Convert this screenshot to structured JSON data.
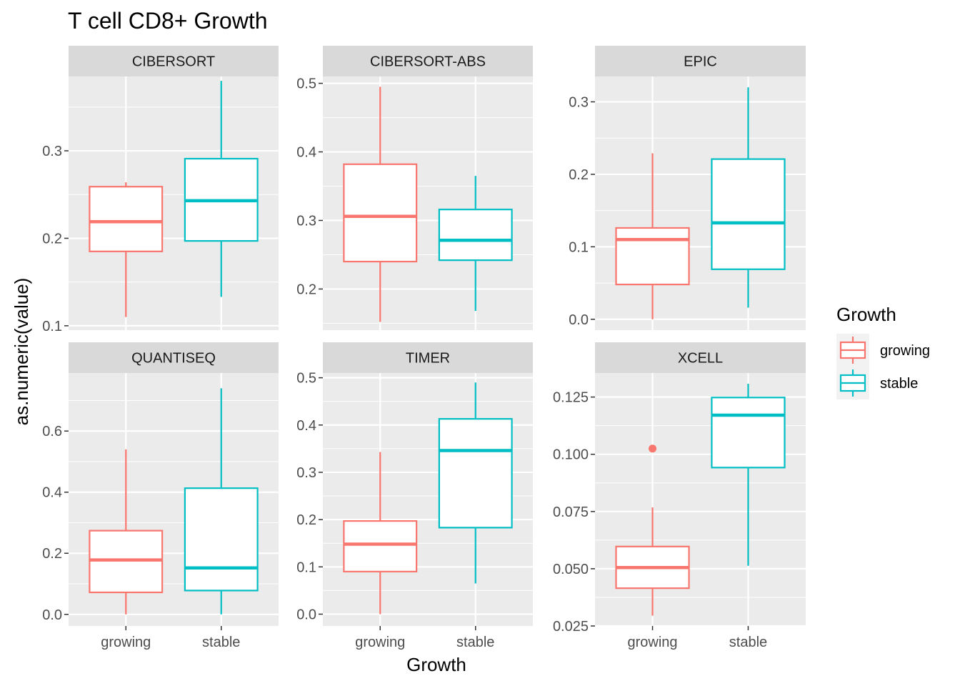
{
  "chart_data": {
    "type": "boxplot",
    "title": "T cell CD8+ Growth",
    "xlabel": "Growth",
    "ylabel": "as.numeric(value)",
    "categories": [
      "growing",
      "stable"
    ],
    "legend": {
      "title": "Growth",
      "position": "right",
      "items": [
        {
          "label": "growing",
          "color": "#F8766D"
        },
        {
          "label": "stable",
          "color": "#00BFC4"
        }
      ]
    },
    "colors": {
      "growing": "#F8766D",
      "stable": "#00BFC4",
      "panel_bg": "#EBEBEB",
      "strip_bg": "#D9D9D9",
      "grid": "#FFFFFF"
    },
    "grid": true,
    "panels": [
      {
        "name": "CIBERSORT",
        "ylim": [
          0.095,
          0.385
        ],
        "yticks": [
          {
            "v": 0.1,
            "label": "0.1"
          },
          {
            "v": 0.2,
            "label": "0.2"
          },
          {
            "v": 0.3,
            "label": "0.3"
          }
        ],
        "boxes": [
          {
            "category": "growing",
            "min": 0.11,
            "q1": 0.185,
            "median": 0.219,
            "q3": 0.259,
            "max": 0.264,
            "outliers": []
          },
          {
            "category": "stable",
            "min": 0.133,
            "q1": 0.197,
            "median": 0.243,
            "q3": 0.291,
            "max": 0.38,
            "outliers": []
          }
        ]
      },
      {
        "name": "CIBERSORT-ABS",
        "ylim": [
          0.14,
          0.51
        ],
        "yticks": [
          {
            "v": 0.2,
            "label": "0.2"
          },
          {
            "v": 0.3,
            "label": "0.3"
          },
          {
            "v": 0.4,
            "label": "0.4"
          },
          {
            "v": 0.5,
            "label": "0.5"
          }
        ],
        "boxes": [
          {
            "category": "growing",
            "min": 0.152,
            "q1": 0.24,
            "median": 0.306,
            "q3": 0.382,
            "max": 0.495,
            "outliers": []
          },
          {
            "category": "stable",
            "min": 0.168,
            "q1": 0.242,
            "median": 0.271,
            "q3": 0.316,
            "max": 0.365,
            "outliers": []
          }
        ]
      },
      {
        "name": "EPIC",
        "ylim": [
          -0.015,
          0.335
        ],
        "yticks": [
          {
            "v": 0.0,
            "label": "0.0"
          },
          {
            "v": 0.1,
            "label": "0.1"
          },
          {
            "v": 0.2,
            "label": "0.2"
          },
          {
            "v": 0.3,
            "label": "0.3"
          }
        ],
        "boxes": [
          {
            "category": "growing",
            "min": 0.0,
            "q1": 0.048,
            "median": 0.11,
            "q3": 0.126,
            "max": 0.229,
            "outliers": []
          },
          {
            "category": "stable",
            "min": 0.016,
            "q1": 0.069,
            "median": 0.133,
            "q3": 0.221,
            "max": 0.32,
            "outliers": []
          }
        ]
      },
      {
        "name": "QUANTISEQ",
        "ylim": [
          -0.038,
          0.79
        ],
        "yticks": [
          {
            "v": 0.0,
            "label": "0.0"
          },
          {
            "v": 0.2,
            "label": "0.2"
          },
          {
            "v": 0.4,
            "label": "0.4"
          },
          {
            "v": 0.6,
            "label": "0.6"
          }
        ],
        "boxes": [
          {
            "category": "growing",
            "min": 0.0,
            "q1": 0.072,
            "median": 0.178,
            "q3": 0.274,
            "max": 0.54,
            "outliers": []
          },
          {
            "category": "stable",
            "min": 0.0,
            "q1": 0.078,
            "median": 0.152,
            "q3": 0.413,
            "max": 0.74,
            "outliers": []
          }
        ]
      },
      {
        "name": "TIMER",
        "ylim": [
          -0.025,
          0.51
        ],
        "yticks": [
          {
            "v": 0.0,
            "label": "0.0"
          },
          {
            "v": 0.1,
            "label": "0.1"
          },
          {
            "v": 0.2,
            "label": "0.2"
          },
          {
            "v": 0.3,
            "label": "0.3"
          },
          {
            "v": 0.4,
            "label": "0.4"
          },
          {
            "v": 0.5,
            "label": "0.5"
          }
        ],
        "boxes": [
          {
            "category": "growing",
            "min": 0.0,
            "q1": 0.09,
            "median": 0.148,
            "q3": 0.197,
            "max": 0.343,
            "outliers": []
          },
          {
            "category": "stable",
            "min": 0.065,
            "q1": 0.183,
            "median": 0.346,
            "q3": 0.413,
            "max": 0.49,
            "outliers": []
          }
        ]
      },
      {
        "name": "XCELL",
        "ylim": [
          0.025,
          0.1355
        ],
        "yticks": [
          {
            "v": 0.025,
            "label": "0.025"
          },
          {
            "v": 0.05,
            "label": "0.050"
          },
          {
            "v": 0.075,
            "label": "0.075"
          },
          {
            "v": 0.1,
            "label": "0.100"
          },
          {
            "v": 0.125,
            "label": "0.125"
          }
        ],
        "boxes": [
          {
            "category": "growing",
            "min": 0.0295,
            "q1": 0.0415,
            "median": 0.0505,
            "q3": 0.0597,
            "max": 0.0768,
            "outliers": [
              0.1025
            ]
          },
          {
            "category": "stable",
            "min": 0.0513,
            "q1": 0.0942,
            "median": 0.1171,
            "q3": 0.1248,
            "max": 0.1308,
            "outliers": []
          }
        ]
      }
    ]
  }
}
